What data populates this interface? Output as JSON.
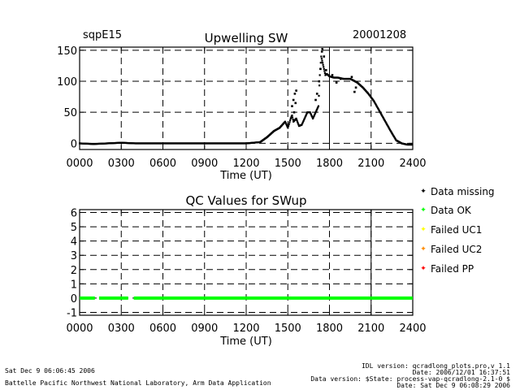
{
  "header": {
    "site": "sqpE15",
    "date": "20001208"
  },
  "footer": {
    "left1": "Sat Dec  9 06:06:45 2006",
    "left2": "Battelle Pacific Northwest National Laboratory, Arm Data Application",
    "right1": "IDL version: qcradlong_plots.pro,v 1.1",
    "right2": "Date: 2006/12/01 16:37:51",
    "right3": "Data version: $State: process-vap-qcradlong-2.1-0 $",
    "right4": "Date: Sat Dec  9 06:08:29 2006"
  },
  "legend": [
    {
      "label": "Data missing",
      "color": "#000000",
      "symbol": "✦"
    },
    {
      "label": "Data OK",
      "color": "#00ff00",
      "symbol": "✦"
    },
    {
      "label": "Failed UC1",
      "color": "#ffff00",
      "symbol": "✦"
    },
    {
      "label": "Failed UC2",
      "color": "#ff8c00",
      "symbol": "✦"
    },
    {
      "label": "Failed PP",
      "color": "#ff0000",
      "symbol": "✦"
    }
  ],
  "chart_data": [
    {
      "type": "scatter",
      "title": "Upwelling SW",
      "xlabel": "Time (UT)",
      "ylabel": "",
      "xlim": [
        0,
        2400
      ],
      "ylim": [
        -10,
        155
      ],
      "x_ticks": [
        "0000",
        "0300",
        "0600",
        "0900",
        "1200",
        "1500",
        "1800",
        "2100",
        "2400"
      ],
      "y_ticks": [
        0,
        50,
        100,
        150
      ],
      "grid": true,
      "vline": 1800,
      "x": [
        0,
        100,
        200,
        300,
        400,
        600,
        800,
        1000,
        1200,
        1300,
        1350,
        1400,
        1440,
        1460,
        1480,
        1500,
        1520,
        1530,
        1540,
        1560,
        1580,
        1600,
        1620,
        1640,
        1660,
        1680,
        1700,
        1720,
        1730,
        1740,
        1750,
        1760,
        1770,
        1780,
        1800,
        1830,
        1860,
        1900,
        1950,
        2000,
        2040,
        2080,
        2120,
        2160,
        2200,
        2240,
        2280,
        2320,
        2340,
        2360,
        2380,
        2400
      ],
      "y": [
        0,
        -1,
        0,
        1,
        0,
        0,
        0,
        0,
        0,
        2,
        10,
        20,
        25,
        30,
        35,
        25,
        40,
        45,
        35,
        40,
        28,
        30,
        40,
        50,
        50,
        40,
        50,
        60,
        110,
        140,
        130,
        120,
        110,
        112,
        108,
        106,
        106,
        104,
        104,
        98,
        90,
        80,
        68,
        52,
        36,
        20,
        5,
        0,
        -1,
        -2,
        -2,
        -2
      ],
      "extra_points": [
        {
          "x": 1530,
          "y": 60
        },
        {
          "x": 1540,
          "y": 70
        },
        {
          "x": 1550,
          "y": 80
        },
        {
          "x": 1560,
          "y": 85
        },
        {
          "x": 1545,
          "y": 50
        },
        {
          "x": 1555,
          "y": 65
        },
        {
          "x": 1700,
          "y": 70
        },
        {
          "x": 1710,
          "y": 80
        },
        {
          "x": 1725,
          "y": 100
        },
        {
          "x": 1735,
          "y": 120
        },
        {
          "x": 1745,
          "y": 148
        },
        {
          "x": 1748,
          "y": 152
        },
        {
          "x": 1760,
          "y": 140
        },
        {
          "x": 1775,
          "y": 118
        },
        {
          "x": 1820,
          "y": 110
        },
        {
          "x": 1980,
          "y": 83
        },
        {
          "x": 1990,
          "y": 90
        },
        {
          "x": 1850,
          "y": 98
        },
        {
          "x": 1880,
          "y": 104
        },
        {
          "x": 1960,
          "y": 107
        }
      ]
    },
    {
      "type": "scatter",
      "title": "QC Values for SWup",
      "xlabel": "Time (UT)",
      "ylabel": "",
      "xlim": [
        0,
        2400
      ],
      "ylim": [
        -1.2,
        6.2
      ],
      "x_ticks": [
        "0000",
        "0300",
        "0600",
        "0900",
        "1200",
        "1500",
        "1800",
        "2100",
        "2400"
      ],
      "y_ticks": [
        -1,
        0,
        1,
        2,
        3,
        4,
        5,
        6
      ],
      "grid": true,
      "vline": 2100,
      "series": [
        {
          "name": "Data OK",
          "color": "#00ff00",
          "y": 0,
          "segments": [
            [
              0,
              110
            ],
            [
              140,
              350
            ],
            [
              390,
              2400
            ]
          ]
        }
      ]
    }
  ]
}
